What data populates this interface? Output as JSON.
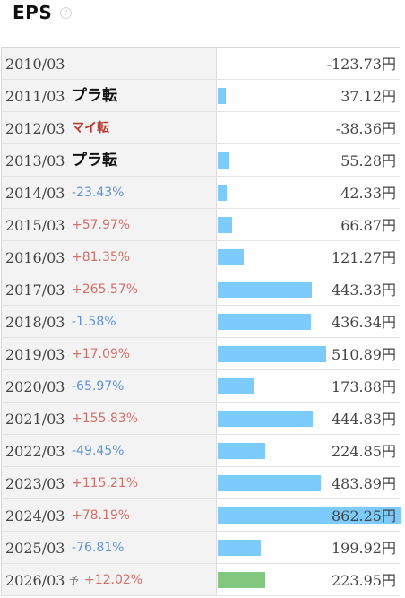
{
  "header": {
    "title": "EPS",
    "help_glyph": "?"
  },
  "chart_data": {
    "type": "bar",
    "title": "EPS",
    "unit": "円",
    "orientation": "horizontal",
    "xlim": [
      0,
      862.25
    ],
    "rows": [
      {
        "year": "2010/03",
        "status": "",
        "status_kind": "none",
        "value": -123.73,
        "value_label": "-123.73円",
        "forecast": false
      },
      {
        "year": "2011/03",
        "status": "プラ転",
        "status_kind": "plus-turn",
        "value": 37.12,
        "value_label": "37.12円",
        "forecast": false
      },
      {
        "year": "2012/03",
        "status": "マイ転",
        "status_kind": "minus-turn",
        "value": -38.36,
        "value_label": "-38.36円",
        "forecast": false
      },
      {
        "year": "2013/03",
        "status": "プラ転",
        "status_kind": "plus-turn",
        "value": 55.28,
        "value_label": "55.28円",
        "forecast": false
      },
      {
        "year": "2014/03",
        "status": "-23.43%",
        "status_kind": "down",
        "value": 42.33,
        "value_label": "42.33円",
        "forecast": false
      },
      {
        "year": "2015/03",
        "status": "+57.97%",
        "status_kind": "up",
        "value": 66.87,
        "value_label": "66.87円",
        "forecast": false
      },
      {
        "year": "2016/03",
        "status": "+81.35%",
        "status_kind": "up",
        "value": 121.27,
        "value_label": "121.27円",
        "forecast": false
      },
      {
        "year": "2017/03",
        "status": "+265.57%",
        "status_kind": "up",
        "value": 443.33,
        "value_label": "443.33円",
        "forecast": false
      },
      {
        "year": "2018/03",
        "status": "-1.58%",
        "status_kind": "down",
        "value": 436.34,
        "value_label": "436.34円",
        "forecast": false
      },
      {
        "year": "2019/03",
        "status": "+17.09%",
        "status_kind": "up",
        "value": 510.89,
        "value_label": "510.89円",
        "forecast": false
      },
      {
        "year": "2020/03",
        "status": "-65.97%",
        "status_kind": "down",
        "value": 173.88,
        "value_label": "173.88円",
        "forecast": false
      },
      {
        "year": "2021/03",
        "status": "+155.83%",
        "status_kind": "up",
        "value": 444.83,
        "value_label": "444.83円",
        "forecast": false
      },
      {
        "year": "2022/03",
        "status": "-49.45%",
        "status_kind": "down",
        "value": 224.85,
        "value_label": "224.85円",
        "forecast": false
      },
      {
        "year": "2023/03",
        "status": "+115.21%",
        "status_kind": "up",
        "value": 483.89,
        "value_label": "483.89円",
        "forecast": false
      },
      {
        "year": "2024/03",
        "status": "+78.19%",
        "status_kind": "up",
        "value": 862.25,
        "value_label": "862.25円",
        "forecast": false
      },
      {
        "year": "2025/03",
        "status": "-76.81%",
        "status_kind": "down",
        "value": 199.92,
        "value_label": "199.92円",
        "forecast": false
      },
      {
        "year": "2026/03",
        "status": "+12.02%",
        "status_kind": "up",
        "value": 223.95,
        "value_label": "223.95円",
        "forecast": true,
        "forecast_mark": "予"
      }
    ],
    "colors": {
      "actual": "#7dcbfb",
      "forecast": "#83c77e",
      "up": "#d2706a",
      "down": "#5f92d6",
      "minus_turn": "#b8392e"
    }
  }
}
